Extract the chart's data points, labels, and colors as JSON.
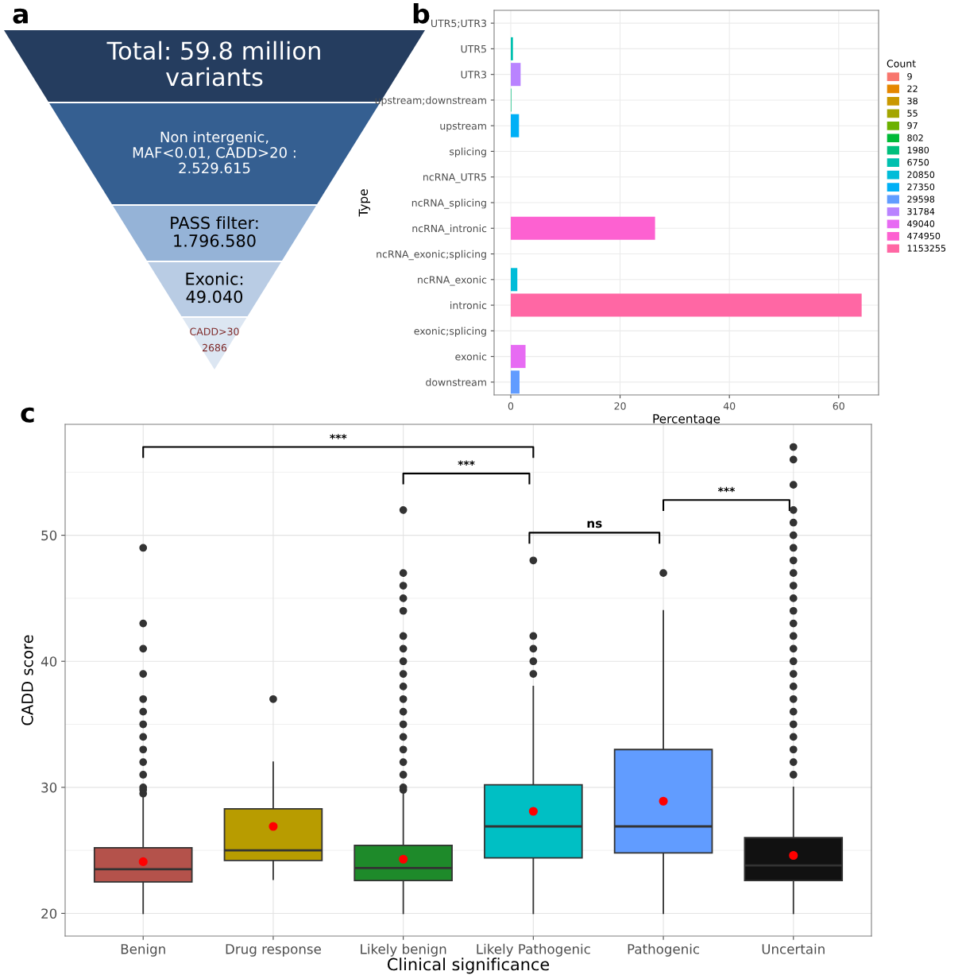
{
  "chart_data": [
    {
      "type": "other",
      "categories": [
        "Total: 59.8 million\nvariants",
        "Non intergenic,\nMAF<0.01, CADD>20 :\n2.529.615",
        "PASS filter:\n1.796.580",
        "Exonic:\n49.040",
        "CADD>30\n\n2686"
      ],
      "colors": [
        "#253d5f",
        "#355f91",
        "#95b3d7",
        "#b9cce4",
        "#dce6f2"
      ],
      "annotations": [
        "a"
      ]
    },
    {
      "type": "bar",
      "orientation": "horizontal",
      "categories": [
        "UTR5;UTR3",
        "UTR5",
        "UTR3",
        "upstream;downstream",
        "upstream",
        "splicing",
        "ncRNA_UTR5",
        "ncRNA_splicing",
        "ncRNA_intronic",
        "ncRNA_exonic;splicing",
        "ncRNA_exonic",
        "intronic",
        "exonic;splicing",
        "exonic",
        "downstream"
      ],
      "series": [
        {
          "name": "9",
          "color": "#f8766d",
          "values": [
            0,
            null,
            null,
            null,
            null,
            null,
            null,
            null,
            null,
            null,
            null,
            null,
            null,
            null,
            null
          ]
        },
        {
          "name": "22",
          "color": "#e58700",
          "values": [
            null,
            null,
            null,
            null,
            null,
            null,
            0,
            null,
            null,
            null,
            null,
            null,
            null,
            null,
            null
          ]
        },
        {
          "name": "38",
          "color": "#c99800",
          "values": [
            null,
            null,
            null,
            null,
            null,
            null,
            null,
            0,
            null,
            null,
            null,
            null,
            null,
            null,
            null
          ]
        },
        {
          "name": "55",
          "color": "#a3a500",
          "values": [
            null,
            null,
            null,
            null,
            null,
            null,
            null,
            null,
            null,
            0,
            null,
            null,
            null,
            null,
            null
          ]
        },
        {
          "name": "97",
          "color": "#6bb100",
          "values": [
            null,
            null,
            null,
            null,
            null,
            0,
            null,
            null,
            null,
            null,
            null,
            null,
            null,
            null,
            null
          ]
        },
        {
          "name": "802",
          "color": "#00ba38",
          "values": [
            null,
            null,
            null,
            null,
            null,
            null,
            null,
            null,
            null,
            null,
            null,
            null,
            0,
            null,
            null
          ]
        },
        {
          "name": "1980",
          "color": "#00bf7d",
          "values": [
            null,
            null,
            null,
            0.1,
            null,
            null,
            null,
            null,
            null,
            null,
            null,
            null,
            null,
            null,
            null
          ]
        },
        {
          "name": "6750",
          "color": "#00c0af",
          "values": [
            null,
            0.4,
            null,
            null,
            null,
            null,
            null,
            null,
            null,
            null,
            null,
            null,
            null,
            null,
            null
          ]
        },
        {
          "name": "20850",
          "color": "#00bcd8",
          "values": [
            null,
            null,
            null,
            null,
            null,
            null,
            null,
            null,
            null,
            null,
            1.2,
            null,
            null,
            null,
            null
          ]
        },
        {
          "name": "27350",
          "color": "#00b0f6",
          "values": [
            null,
            null,
            null,
            null,
            1.5,
            null,
            null,
            null,
            null,
            null,
            null,
            null,
            null,
            null,
            null
          ]
        },
        {
          "name": "29598",
          "color": "#619cff",
          "values": [
            null,
            null,
            null,
            null,
            null,
            null,
            null,
            null,
            null,
            null,
            null,
            null,
            null,
            null,
            1.6
          ]
        },
        {
          "name": "31784",
          "color": "#b983ff",
          "values": [
            null,
            null,
            1.8,
            null,
            null,
            null,
            null,
            null,
            null,
            null,
            null,
            null,
            null,
            null,
            null
          ]
        },
        {
          "name": "49040",
          "color": "#e76bf3",
          "values": [
            null,
            null,
            null,
            null,
            null,
            null,
            null,
            null,
            null,
            null,
            null,
            null,
            null,
            2.7,
            null
          ]
        },
        {
          "name": "474950",
          "color": "#fd61d1",
          "values": [
            null,
            null,
            null,
            null,
            null,
            null,
            null,
            null,
            26.4,
            null,
            null,
            null,
            null,
            null,
            null
          ]
        },
        {
          "name": "1153255",
          "color": "#ff67a4",
          "values": [
            null,
            null,
            null,
            null,
            null,
            null,
            null,
            null,
            null,
            null,
            null,
            64.2,
            null,
            null,
            null
          ]
        }
      ],
      "xlim": [
        -3.05,
        67.3
      ],
      "xticks": [
        0,
        20,
        40,
        60
      ],
      "xlabel": "Percentage",
      "ylabel": "Type",
      "legend": "right",
      "legend_title": "Count",
      "grid": true,
      "annotations": [
        "b"
      ]
    },
    {
      "type": "box",
      "categories": [
        "Benign",
        "Drug response",
        "Likely benign",
        "Likely Pathogenic",
        "Pathogenic",
        "Uncertain"
      ],
      "boxes": [
        {
          "low": 20,
          "q1": 22.5,
          "median": 23.5,
          "q3": 25.2,
          "high": 29.3,
          "mean": 24.1,
          "outliers": [
            29.5,
            29.8,
            30,
            31,
            32,
            33,
            34,
            35,
            36,
            37,
            39,
            41,
            43,
            49
          ]
        },
        {
          "low": 22.7,
          "q1": 24.2,
          "median": 25.0,
          "q3": 28.3,
          "high": 32,
          "mean": 26.9,
          "outliers": [
            37
          ]
        },
        {
          "low": 20,
          "q1": 22.6,
          "median": 23.6,
          "q3": 25.4,
          "high": 29.5,
          "mean": 24.3,
          "outliers": [
            29.8,
            30,
            31,
            32,
            33,
            34,
            35,
            36,
            37,
            38,
            39,
            40,
            41,
            42,
            44,
            45,
            46,
            47,
            52
          ]
        },
        {
          "low": 20,
          "q1": 24.4,
          "median": 26.9,
          "q3": 30.2,
          "high": 38,
          "mean": 28.1,
          "outliers": [
            39,
            40,
            41,
            42,
            48
          ]
        },
        {
          "low": 20,
          "q1": 24.8,
          "median": 26.9,
          "q3": 33.0,
          "high": 44,
          "mean": 28.9,
          "outliers": [
            47
          ]
        },
        {
          "low": 20,
          "q1": 22.6,
          "median": 23.8,
          "q3": 26.0,
          "high": 30,
          "mean": 24.6,
          "outliers": [
            31,
            32,
            33,
            34,
            35,
            36,
            37,
            38,
            39,
            40,
            41,
            42,
            43,
            44,
            45,
            46,
            47,
            48,
            49,
            50,
            51,
            52,
            54,
            56,
            57
          ]
        }
      ],
      "colors": [
        "#b4524b",
        "#b89c00",
        "#1e8a2a",
        "#00bfc4",
        "#619cff",
        "#111111"
      ],
      "ylim": [
        18.2,
        58.8
      ],
      "yticks": [
        20,
        30,
        40,
        50
      ],
      "xlabel": "Clinical significance",
      "ylabel": "CADD score",
      "grid": true,
      "annotations": [
        "c",
        "***",
        "***",
        "ns",
        "***"
      ]
    }
  ]
}
